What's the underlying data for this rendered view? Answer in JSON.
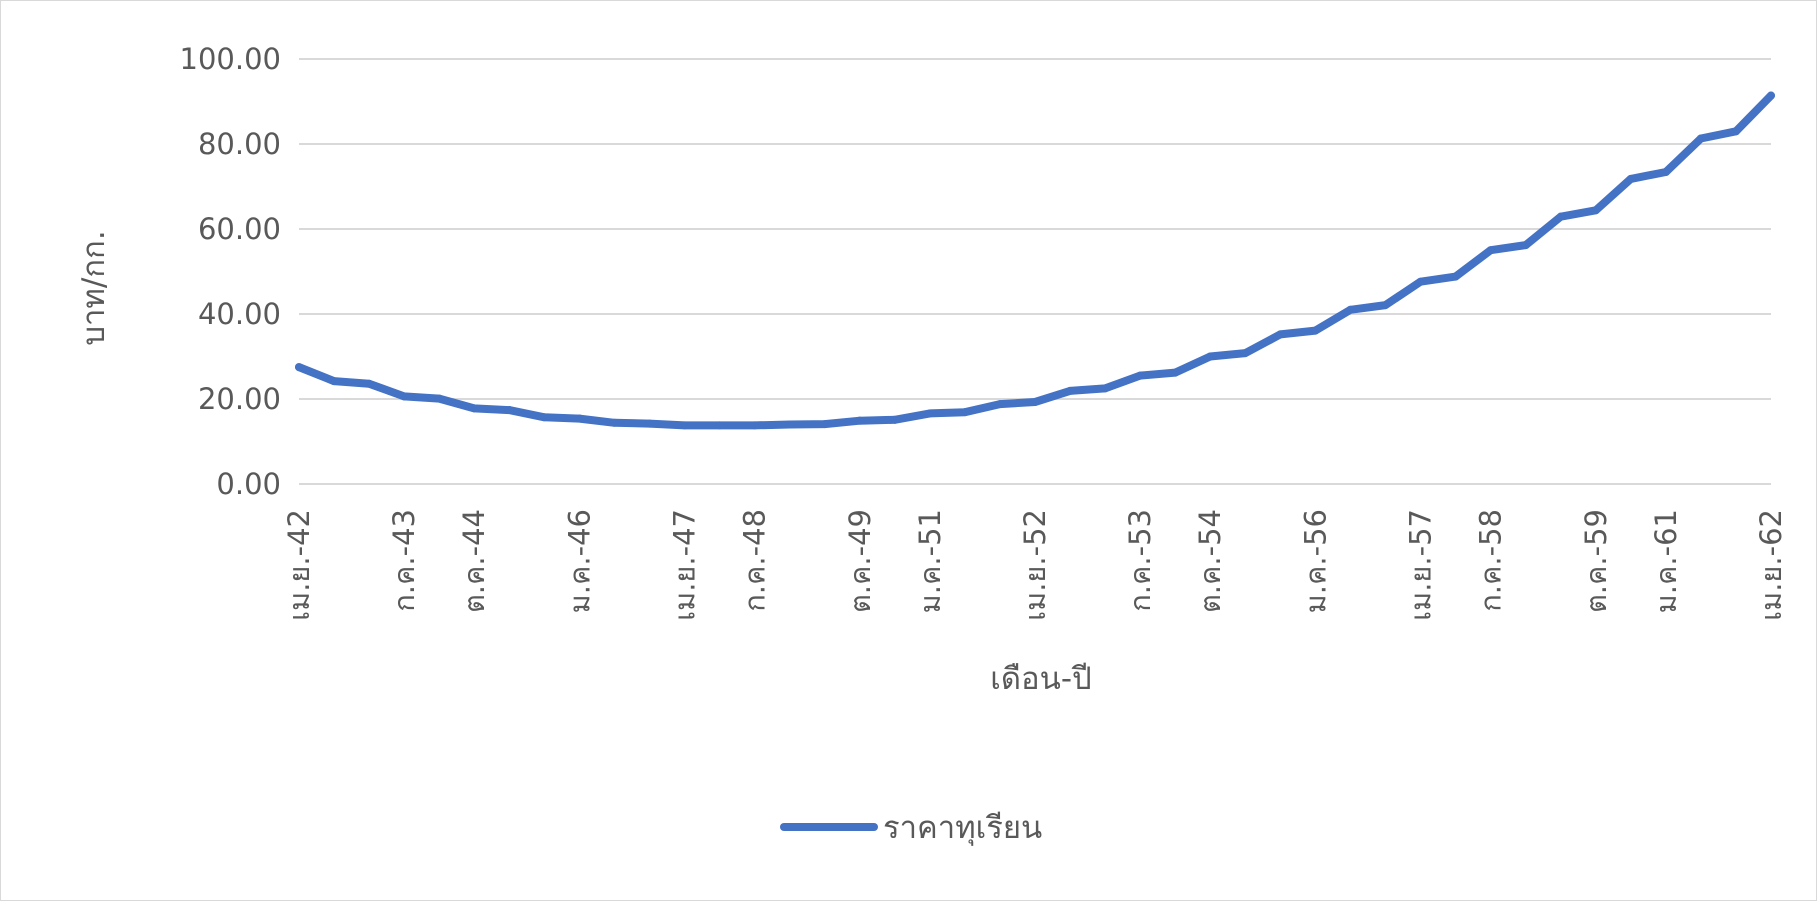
{
  "chart_data": {
    "type": "line",
    "title": "",
    "xlabel": "เดือน-ปี",
    "ylabel": "บาท/กก.",
    "ylim": [
      0,
      100
    ],
    "yticks": [
      "0.00",
      "20.00",
      "40.00",
      "60.00",
      "80.00",
      "100.00"
    ],
    "grid": true,
    "legend_position": "bottom",
    "x_tick_labels": [
      "เม.ย.-42",
      "ก.ค.-43",
      "ต.ค.-44",
      "ม.ค.-46",
      "เม.ย.-47",
      "ก.ค.-48",
      "ต.ค.-49",
      "ม.ค.-51",
      "เม.ย.-52",
      "ก.ค.-53",
      "ต.ค.-54",
      "ม.ค.-56",
      "เม.ย.-57",
      "ก.ค.-58",
      "ต.ค.-59",
      "ม.ค.-61",
      "เม.ย.-62"
    ],
    "series": [
      {
        "name": "ราคาทุเรียน",
        "color": "#4472C4",
        "values": [
          27.5,
          24.2,
          23.6,
          20.6,
          20.1,
          17.8,
          17.4,
          15.7,
          15.4,
          14.4,
          14.2,
          13.8,
          13.8,
          13.8,
          14.0,
          14.1,
          14.9,
          15.1,
          16.6,
          16.9,
          18.8,
          19.3,
          21.9,
          22.5,
          25.5,
          26.2,
          30.0,
          30.8,
          35.2,
          36.1,
          41.0,
          42.1,
          47.6,
          48.8,
          55.0,
          56.2,
          62.9,
          64.4,
          71.8,
          73.4,
          81.3,
          83.0,
          91.4
        ]
      }
    ]
  }
}
